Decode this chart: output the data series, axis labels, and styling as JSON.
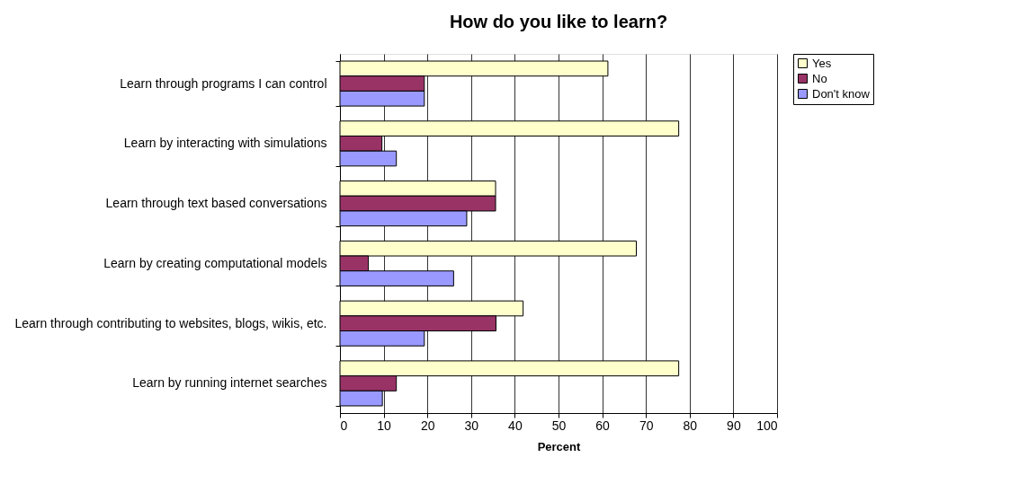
{
  "chart_data": {
    "type": "bar",
    "orientation": "horizontal",
    "title": "How do you like to learn?",
    "xlabel": "Percent",
    "categories": [
      "Learn through programs I can control",
      "Learn by interacting with simulations",
      "Learn through text based  conversations",
      "Learn by creating computational models",
      "Learn through contributing to websites, blogs, wikis, etc.",
      "Learn by running internet searches"
    ],
    "series": [
      {
        "name": "Yes",
        "color": "#ffffcc",
        "values": [
          61.3,
          77.5,
          35.6,
          67.8,
          41.9,
          77.5
        ]
      },
      {
        "name": "No",
        "color": "#993366",
        "values": [
          19.3,
          9.6,
          35.6,
          6.5,
          35.7,
          12.9
        ]
      },
      {
        "name": "Don't know",
        "color": "#9999ff",
        "values": [
          19.3,
          12.9,
          29.0,
          26.0,
          19.3,
          9.7
        ]
      }
    ],
    "xlim": [
      0,
      100
    ],
    "xticks": [
      0,
      10,
      20,
      30,
      40,
      50,
      60,
      70,
      80,
      90,
      100
    ],
    "grid": "x",
    "legend": "right"
  }
}
